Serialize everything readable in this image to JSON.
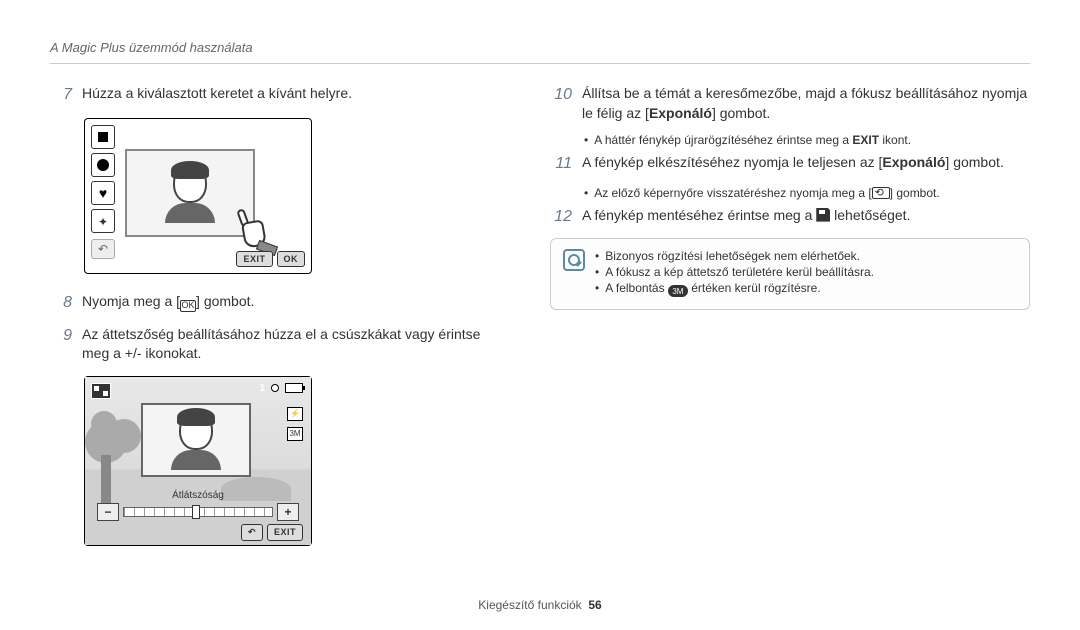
{
  "header": {
    "title": "A Magic Plus üzemmód használata"
  },
  "left": {
    "step7": {
      "num": "7",
      "text": "Húzza a kiválasztott keretet a kívánt helyre."
    },
    "shot1": {
      "exit": "EXIT",
      "ok": "OK"
    },
    "step8": {
      "num": "8",
      "pre": "Nyomja meg a [",
      "ok": "OK",
      "post": "] gombot."
    },
    "step9": {
      "num": "9",
      "text": "Az áttetszőség beállításához húzza el a csúszkákat vagy érintse meg a +/- ikonokat."
    },
    "shot2": {
      "count": "1",
      "res": "3M",
      "slider_label": "Átlátszóság",
      "minus": "−",
      "plus": "+",
      "back": "↶",
      "exit": "EXIT"
    }
  },
  "right": {
    "step10": {
      "num": "10",
      "line1": "Állítsa be a témát a keresőmezőbe, majd a fókusz beállításához nyomja le félig az [",
      "bold1": "Exponáló",
      "line1b": "] gombot.",
      "bullet1a": "A háttér fénykép újrarögzítéséhez érintse meg a ",
      "bullet1_bold": "EXIT",
      "bullet1b": " ikont."
    },
    "step11": {
      "num": "11",
      "pre": "A fénykép elkészítéséhez nyomja le teljesen az [",
      "bold": "Exponáló",
      "post": "] gombot.",
      "bullet": "Az előző képernyőre visszatéréshez nyomja meg a [",
      "bullet_post": "] gombot."
    },
    "step12": {
      "num": "12",
      "pre": "A fénykép mentéséhez érintse meg a ",
      "post": " lehetőséget."
    },
    "note": {
      "b1": "Bizonyos rögzítési lehetőségek nem elérhetőek.",
      "b2": "A fókusz a kép áttetsző területére kerül beállításra.",
      "b3_pre": "A felbontás ",
      "b3_res": "3M",
      "b3_post": " értéken kerül rögzítésre."
    }
  },
  "footer": {
    "label": "Kiegészítő funkciók",
    "page": "56"
  }
}
